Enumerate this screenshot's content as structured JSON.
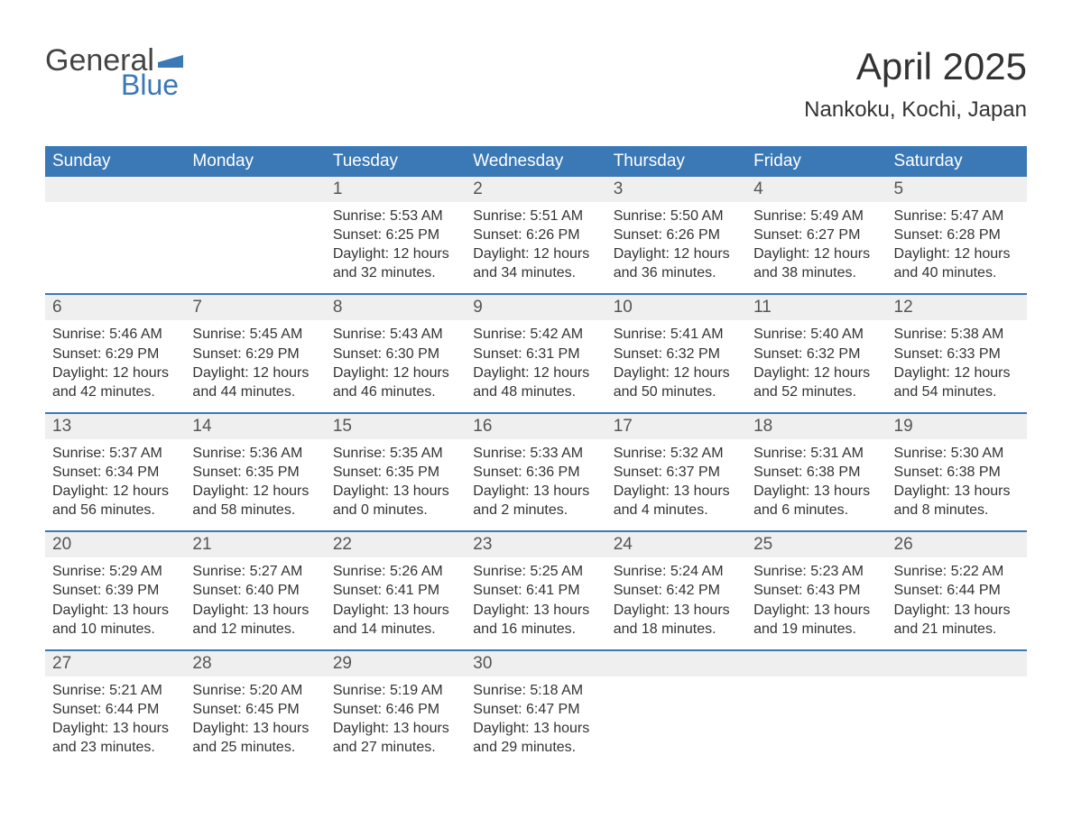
{
  "logo": {
    "general": "General",
    "blue": "Blue",
    "general_color": "#444444",
    "blue_color": "#3b78b6",
    "flag_color": "#3b78b6"
  },
  "header": {
    "title": "April 2025",
    "subtitle": "Nankoku, Kochi, Japan",
    "title_fontsize": 42,
    "subtitle_fontsize": 24
  },
  "colors": {
    "header_bg": "#3b78b6",
    "header_text": "#ffffff",
    "daynum_bg": "#efefef",
    "week_separator": "#3b78b6",
    "body_text": "#333333",
    "background": "#ffffff"
  },
  "typography": {
    "font_family": "Arial, Helvetica, sans-serif",
    "weekday_fontsize": 19,
    "daynum_fontsize": 19,
    "cell_fontsize": 16
  },
  "calendar": {
    "weekdays": [
      "Sunday",
      "Monday",
      "Tuesday",
      "Wednesday",
      "Thursday",
      "Friday",
      "Saturday"
    ],
    "weeks": [
      [
        null,
        null,
        {
          "day": "1",
          "sunrise": "Sunrise: 5:53 AM",
          "sunset": "Sunset: 6:25 PM",
          "daylight1": "Daylight: 12 hours",
          "daylight2": "and 32 minutes."
        },
        {
          "day": "2",
          "sunrise": "Sunrise: 5:51 AM",
          "sunset": "Sunset: 6:26 PM",
          "daylight1": "Daylight: 12 hours",
          "daylight2": "and 34 minutes."
        },
        {
          "day": "3",
          "sunrise": "Sunrise: 5:50 AM",
          "sunset": "Sunset: 6:26 PM",
          "daylight1": "Daylight: 12 hours",
          "daylight2": "and 36 minutes."
        },
        {
          "day": "4",
          "sunrise": "Sunrise: 5:49 AM",
          "sunset": "Sunset: 6:27 PM",
          "daylight1": "Daylight: 12 hours",
          "daylight2": "and 38 minutes."
        },
        {
          "day": "5",
          "sunrise": "Sunrise: 5:47 AM",
          "sunset": "Sunset: 6:28 PM",
          "daylight1": "Daylight: 12 hours",
          "daylight2": "and 40 minutes."
        }
      ],
      [
        {
          "day": "6",
          "sunrise": "Sunrise: 5:46 AM",
          "sunset": "Sunset: 6:29 PM",
          "daylight1": "Daylight: 12 hours",
          "daylight2": "and 42 minutes."
        },
        {
          "day": "7",
          "sunrise": "Sunrise: 5:45 AM",
          "sunset": "Sunset: 6:29 PM",
          "daylight1": "Daylight: 12 hours",
          "daylight2": "and 44 minutes."
        },
        {
          "day": "8",
          "sunrise": "Sunrise: 5:43 AM",
          "sunset": "Sunset: 6:30 PM",
          "daylight1": "Daylight: 12 hours",
          "daylight2": "and 46 minutes."
        },
        {
          "day": "9",
          "sunrise": "Sunrise: 5:42 AM",
          "sunset": "Sunset: 6:31 PM",
          "daylight1": "Daylight: 12 hours",
          "daylight2": "and 48 minutes."
        },
        {
          "day": "10",
          "sunrise": "Sunrise: 5:41 AM",
          "sunset": "Sunset: 6:32 PM",
          "daylight1": "Daylight: 12 hours",
          "daylight2": "and 50 minutes."
        },
        {
          "day": "11",
          "sunrise": "Sunrise: 5:40 AM",
          "sunset": "Sunset: 6:32 PM",
          "daylight1": "Daylight: 12 hours",
          "daylight2": "and 52 minutes."
        },
        {
          "day": "12",
          "sunrise": "Sunrise: 5:38 AM",
          "sunset": "Sunset: 6:33 PM",
          "daylight1": "Daylight: 12 hours",
          "daylight2": "and 54 minutes."
        }
      ],
      [
        {
          "day": "13",
          "sunrise": "Sunrise: 5:37 AM",
          "sunset": "Sunset: 6:34 PM",
          "daylight1": "Daylight: 12 hours",
          "daylight2": "and 56 minutes."
        },
        {
          "day": "14",
          "sunrise": "Sunrise: 5:36 AM",
          "sunset": "Sunset: 6:35 PM",
          "daylight1": "Daylight: 12 hours",
          "daylight2": "and 58 minutes."
        },
        {
          "day": "15",
          "sunrise": "Sunrise: 5:35 AM",
          "sunset": "Sunset: 6:35 PM",
          "daylight1": "Daylight: 13 hours",
          "daylight2": "and 0 minutes."
        },
        {
          "day": "16",
          "sunrise": "Sunrise: 5:33 AM",
          "sunset": "Sunset: 6:36 PM",
          "daylight1": "Daylight: 13 hours",
          "daylight2": "and 2 minutes."
        },
        {
          "day": "17",
          "sunrise": "Sunrise: 5:32 AM",
          "sunset": "Sunset: 6:37 PM",
          "daylight1": "Daylight: 13 hours",
          "daylight2": "and 4 minutes."
        },
        {
          "day": "18",
          "sunrise": "Sunrise: 5:31 AM",
          "sunset": "Sunset: 6:38 PM",
          "daylight1": "Daylight: 13 hours",
          "daylight2": "and 6 minutes."
        },
        {
          "day": "19",
          "sunrise": "Sunrise: 5:30 AM",
          "sunset": "Sunset: 6:38 PM",
          "daylight1": "Daylight: 13 hours",
          "daylight2": "and 8 minutes."
        }
      ],
      [
        {
          "day": "20",
          "sunrise": "Sunrise: 5:29 AM",
          "sunset": "Sunset: 6:39 PM",
          "daylight1": "Daylight: 13 hours",
          "daylight2": "and 10 minutes."
        },
        {
          "day": "21",
          "sunrise": "Sunrise: 5:27 AM",
          "sunset": "Sunset: 6:40 PM",
          "daylight1": "Daylight: 13 hours",
          "daylight2": "and 12 minutes."
        },
        {
          "day": "22",
          "sunrise": "Sunrise: 5:26 AM",
          "sunset": "Sunset: 6:41 PM",
          "daylight1": "Daylight: 13 hours",
          "daylight2": "and 14 minutes."
        },
        {
          "day": "23",
          "sunrise": "Sunrise: 5:25 AM",
          "sunset": "Sunset: 6:41 PM",
          "daylight1": "Daylight: 13 hours",
          "daylight2": "and 16 minutes."
        },
        {
          "day": "24",
          "sunrise": "Sunrise: 5:24 AM",
          "sunset": "Sunset: 6:42 PM",
          "daylight1": "Daylight: 13 hours",
          "daylight2": "and 18 minutes."
        },
        {
          "day": "25",
          "sunrise": "Sunrise: 5:23 AM",
          "sunset": "Sunset: 6:43 PM",
          "daylight1": "Daylight: 13 hours",
          "daylight2": "and 19 minutes."
        },
        {
          "day": "26",
          "sunrise": "Sunrise: 5:22 AM",
          "sunset": "Sunset: 6:44 PM",
          "daylight1": "Daylight: 13 hours",
          "daylight2": "and 21 minutes."
        }
      ],
      [
        {
          "day": "27",
          "sunrise": "Sunrise: 5:21 AM",
          "sunset": "Sunset: 6:44 PM",
          "daylight1": "Daylight: 13 hours",
          "daylight2": "and 23 minutes."
        },
        {
          "day": "28",
          "sunrise": "Sunrise: 5:20 AM",
          "sunset": "Sunset: 6:45 PM",
          "daylight1": "Daylight: 13 hours",
          "daylight2": "and 25 minutes."
        },
        {
          "day": "29",
          "sunrise": "Sunrise: 5:19 AM",
          "sunset": "Sunset: 6:46 PM",
          "daylight1": "Daylight: 13 hours",
          "daylight2": "and 27 minutes."
        },
        {
          "day": "30",
          "sunrise": "Sunrise: 5:18 AM",
          "sunset": "Sunset: 6:47 PM",
          "daylight1": "Daylight: 13 hours",
          "daylight2": "and 29 minutes."
        },
        null,
        null,
        null
      ]
    ]
  }
}
